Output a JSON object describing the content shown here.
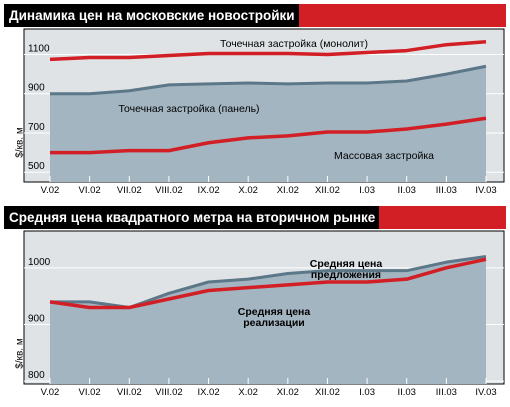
{
  "chart_data": [
    {
      "type": "area",
      "title": "Динамика цен на московские новостройки",
      "ylabel": "$/кв. м",
      "categories": [
        "V.02",
        "VI.02",
        "VII.02",
        "VIII.02",
        "IX.02",
        "X.02",
        "XI.02",
        "XII.02",
        "I.03",
        "II.03",
        "III.03",
        "IV.03"
      ],
      "yticks": [
        500,
        700,
        900,
        1100
      ],
      "ylim": [
        450,
        1230
      ],
      "grid": true,
      "series": [
        {
          "name": "Точечная застройка (монолит)",
          "style": "line",
          "color": "#d21f26",
          "values": [
            1075,
            1085,
            1085,
            1095,
            1105,
            1105,
            1105,
            1100,
            1110,
            1120,
            1150,
            1165
          ]
        },
        {
          "name": "Точечная застройка (панель)",
          "style": "area",
          "color": "#5b7788",
          "values": [
            900,
            900,
            915,
            945,
            950,
            955,
            950,
            955,
            955,
            965,
            1000,
            1040
          ]
        },
        {
          "name": "Массовая застройка",
          "style": "line",
          "color": "#d21f26",
          "values": [
            600,
            600,
            610,
            610,
            650,
            675,
            685,
            705,
            705,
            720,
            745,
            775
          ]
        }
      ]
    },
    {
      "type": "area",
      "title": "Средняя цена квадратного метра на вторичном рынке",
      "ylabel": "$/кв. м",
      "categories": [
        "V.02",
        "VI.02",
        "VII.02",
        "VIII.02",
        "IX.02",
        "X.02",
        "XI.02",
        "XII.02",
        "I.03",
        "II.03",
        "III.03",
        "IV.03"
      ],
      "yticks": [
        800,
        900,
        1000
      ],
      "ylim": [
        795,
        1065
      ],
      "grid": true,
      "series": [
        {
          "name": "Средняя цена предложения",
          "style": "area",
          "color": "#5b7788",
          "values": [
            940,
            940,
            930,
            955,
            975,
            980,
            990,
            995,
            995,
            995,
            1010,
            1020
          ]
        },
        {
          "name": "Средняя цена реализации",
          "style": "line",
          "color": "#d21f26",
          "values": [
            940,
            930,
            930,
            945,
            960,
            965,
            970,
            975,
            975,
            980,
            1000,
            1015
          ]
        }
      ]
    }
  ],
  "colors": {
    "accent": "#d21f26",
    "plot_background": "#dfe3e6",
    "area_fill": "#a3b5c1",
    "area_line": "#5b7788",
    "grid": "#ffffff",
    "title_bar": "#000000"
  }
}
